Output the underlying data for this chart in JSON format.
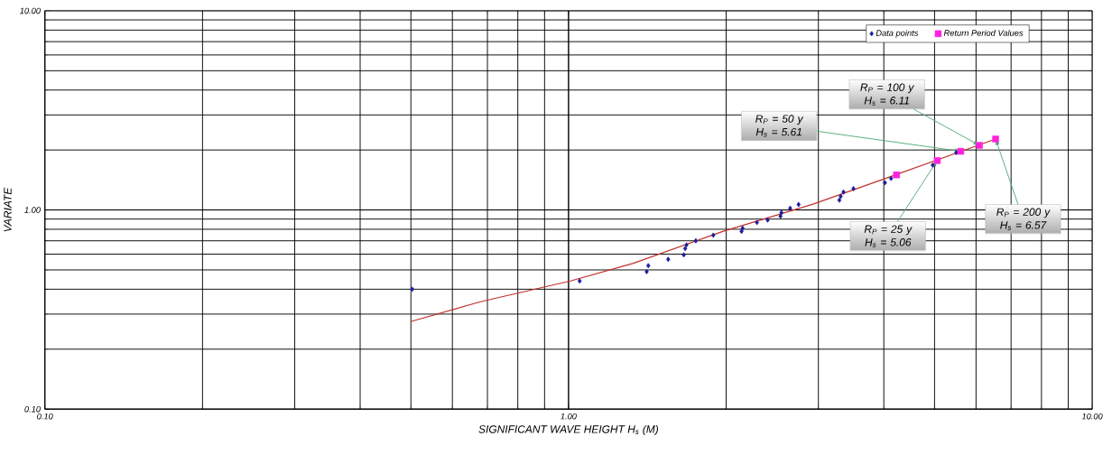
{
  "chart_data": {
    "type": "scatter",
    "xlabel": "SIGNIFICANT WAVE HEIGHT H$_{s}$ (M)",
    "ylabel": "VARIATE",
    "log": "xy",
    "grid": true,
    "legend": "top right",
    "xlim": [
      0.1,
      10
    ],
    "ylim": [
      0.1,
      10
    ],
    "xticks": [
      {
        "value": 0.1,
        "label": "0.10"
      },
      {
        "value": 1,
        "label": "1.00"
      },
      {
        "value": 10,
        "label": "10.00"
      }
    ],
    "yticks": [
      {
        "value": 0.1,
        "label": "0.10"
      },
      {
        "value": 1,
        "label": "1.00"
      },
      {
        "value": 10,
        "label": "10.00"
      }
    ],
    "series": [
      {
        "name": "Data points",
        "marker": "diamond",
        "color": "#1c1c9c",
        "x": [
          0.503,
          1.05,
          1.41,
          1.42,
          1.55,
          1.66,
          1.67,
          1.68,
          1.75,
          1.89,
          2.14,
          2.15,
          2.29,
          2.4,
          2.54,
          2.55,
          2.65,
          2.75,
          3.29,
          3.31,
          3.35,
          3.5,
          4.02,
          4.13,
          4.96,
          5.5
        ],
        "values": [
          0.4,
          0.44,
          0.49,
          0.525,
          0.565,
          0.595,
          0.64,
          0.667,
          0.7,
          0.747,
          0.78,
          0.81,
          0.865,
          0.89,
          0.93,
          0.97,
          1.02,
          1.065,
          1.12,
          1.17,
          1.23,
          1.28,
          1.37,
          1.44,
          1.68,
          1.94
        ]
      },
      {
        "type": "line",
        "marker": "none",
        "color": "#c0302a",
        "x": [
          0.499,
          0.679,
          1.008,
          1.33,
          1.97,
          2.93,
          4.18,
          6.54
        ],
        "values": [
          0.275,
          0.346,
          0.44,
          0.54,
          0.78,
          1.07,
          1.49,
          2.27
        ]
      },
      {
        "name": "Return Period Values",
        "marker": "square",
        "color": "#ff22dd",
        "x": [
          4.23,
          5.06,
          5.61,
          6.09,
          6.54
        ],
        "values": [
          1.5,
          1.77,
          1.97,
          2.11,
          2.27
        ]
      }
    ],
    "annotations": [
      {
        "text": "R$_{P}$ = 100 y H$_{s}$ = 6.11",
        "x": 6.09,
        "y": 2.11
      },
      {
        "text": "R$_{P}$ = 50 y H$_{s}$ = 5.61",
        "x": 5.61,
        "y": 1.97
      },
      {
        "text": "R$_{P}$ = 25 y H$_{s}$ = 5.06",
        "x": 5.06,
        "y": 1.77
      },
      {
        "text": "R$_{P}$ = 200 y H$_{s}$ = 6.57",
        "x": 6.54,
        "y": 2.27
      }
    ]
  }
}
